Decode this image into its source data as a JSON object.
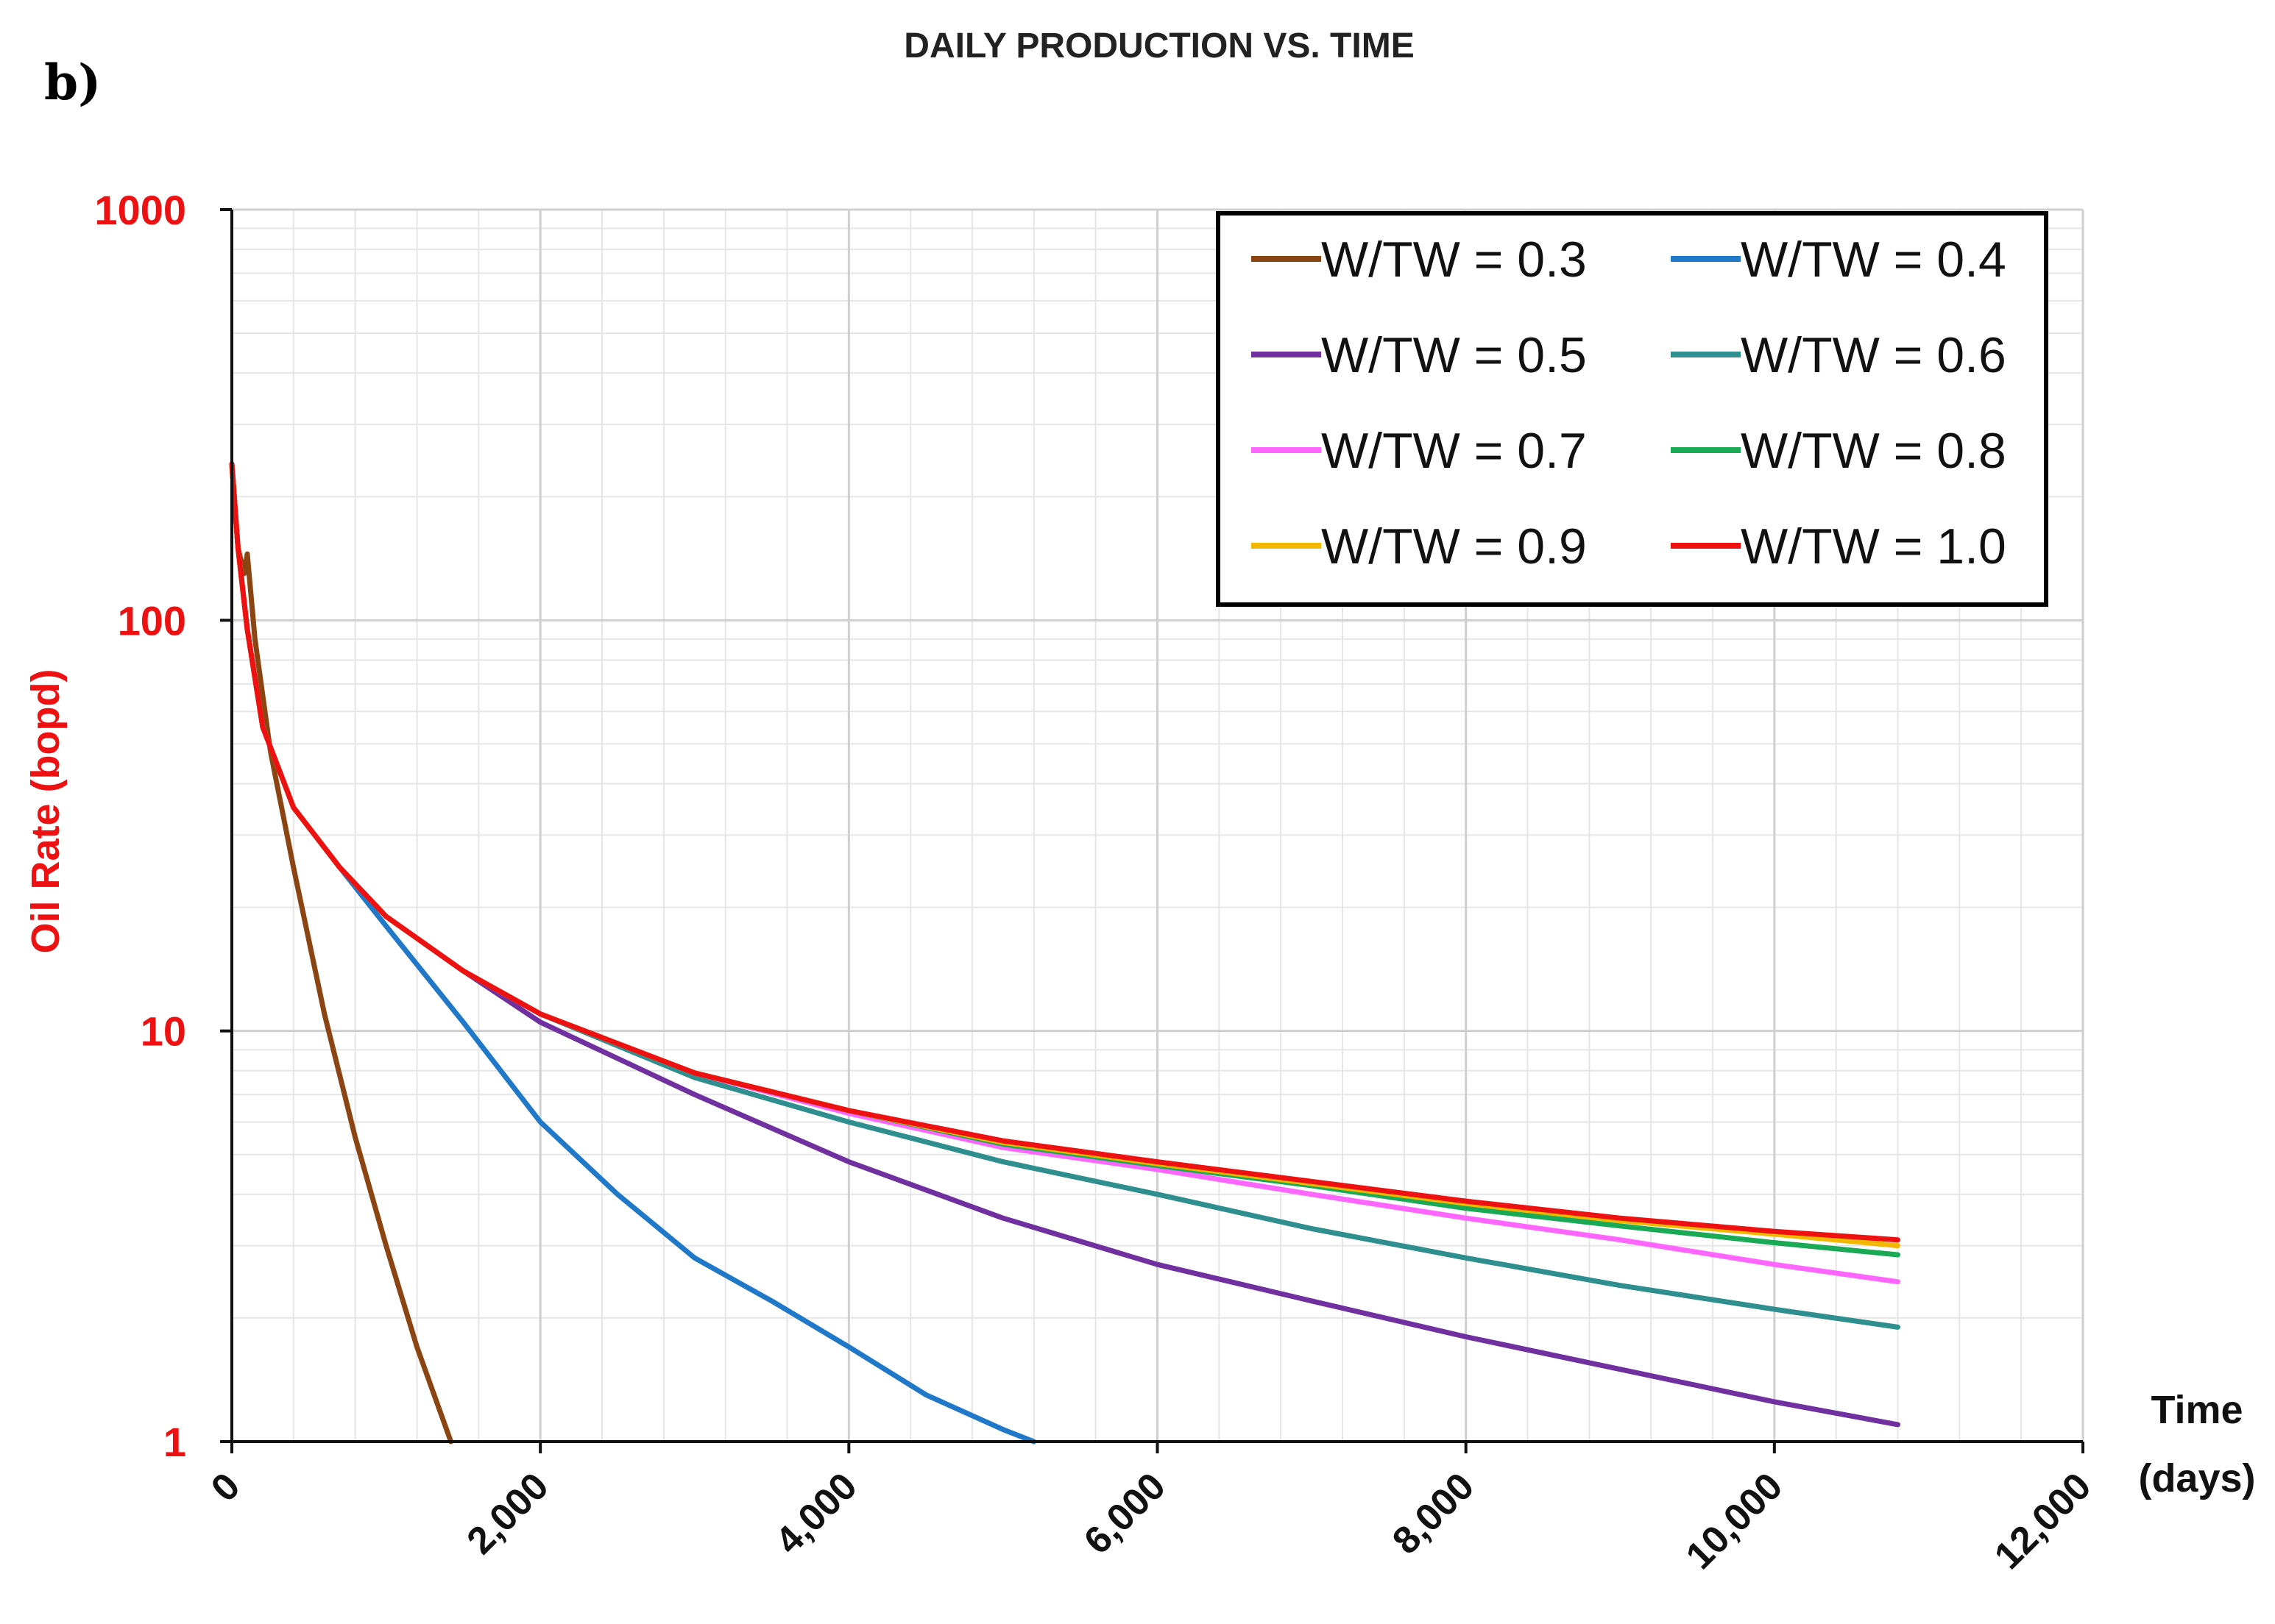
{
  "panel_label": "b)",
  "chart_data": {
    "type": "line",
    "title": "DAILY PRODUCTION VS. TIME",
    "xlabel": [
      "Time",
      "(days)"
    ],
    "ylabel": "Oil Rate (bopd)",
    "xlim": [
      0,
      12000
    ],
    "ylim": [
      1,
      1000
    ],
    "yscale": "log",
    "x_ticks": [
      0,
      2000,
      4000,
      6000,
      8000,
      10000,
      12000
    ],
    "x_tick_labels": [
      "0",
      "2,000",
      "4,000",
      "6,000",
      "8,000",
      "10,000",
      "12,000"
    ],
    "y_ticks": [
      1,
      10,
      100,
      1000
    ],
    "y_tick_labels": [
      "1",
      "10",
      "100",
      "1000"
    ],
    "grid": true,
    "legend_position": "top-right",
    "series": [
      {
        "name": "W/TW = 0.3",
        "color": "#8B4513",
        "x": [
          0,
          40,
          80,
          100,
          150,
          250,
          400,
          600,
          800,
          1000,
          1200,
          1400,
          1420
        ],
        "y": [
          240,
          150,
          130,
          145,
          90,
          48,
          25,
          11,
          5.5,
          3.0,
          1.7,
          1.05,
          1.0
        ]
      },
      {
        "name": "W/TW = 0.4",
        "color": "#1f78c8",
        "x": [
          0,
          40,
          100,
          200,
          400,
          700,
          1000,
          1500,
          2000,
          2500,
          3000,
          3500,
          4000,
          4500,
          5000,
          5200
        ],
        "y": [
          240,
          150,
          95,
          55,
          35,
          25,
          18,
          10.5,
          6.0,
          4.0,
          2.8,
          2.2,
          1.7,
          1.3,
          1.07,
          1.0
        ]
      },
      {
        "name": "W/TW = 0.5",
        "color": "#7030a0",
        "x": [
          0,
          40,
          100,
          200,
          400,
          700,
          1000,
          1500,
          2000,
          3000,
          4000,
          5000,
          6000,
          7000,
          8000,
          9000,
          10000,
          10800
        ],
        "y": [
          240,
          150,
          95,
          55,
          35,
          25,
          19,
          14,
          10.5,
          7.0,
          4.8,
          3.5,
          2.7,
          2.2,
          1.8,
          1.5,
          1.25,
          1.1
        ]
      },
      {
        "name": "W/TW = 0.6",
        "color": "#2f8f8f",
        "x": [
          0,
          40,
          100,
          200,
          400,
          700,
          1000,
          1500,
          2000,
          3000,
          4000,
          5000,
          6000,
          7000,
          8000,
          9000,
          10000,
          10800
        ],
        "y": [
          240,
          150,
          95,
          55,
          35,
          25,
          19,
          14,
          11,
          7.7,
          6.0,
          4.8,
          4.0,
          3.3,
          2.8,
          2.4,
          2.1,
          1.9
        ]
      },
      {
        "name": "W/TW = 0.7",
        "color": "#ff66ff",
        "x": [
          0,
          40,
          100,
          200,
          400,
          700,
          1000,
          1500,
          2000,
          3000,
          4000,
          5000,
          6000,
          7000,
          8000,
          9000,
          10000,
          10800
        ],
        "y": [
          240,
          150,
          95,
          55,
          35,
          25,
          19,
          14,
          11,
          7.9,
          6.3,
          5.2,
          4.6,
          4.0,
          3.5,
          3.1,
          2.7,
          2.45
        ]
      },
      {
        "name": "W/TW = 0.8",
        "color": "#1aaa55",
        "x": [
          0,
          40,
          100,
          200,
          400,
          700,
          1000,
          1500,
          2000,
          3000,
          4000,
          5000,
          6000,
          7000,
          8000,
          9000,
          10000,
          10800
        ],
        "y": [
          240,
          150,
          95,
          55,
          35,
          25,
          19,
          14,
          11,
          7.9,
          6.4,
          5.3,
          4.7,
          4.2,
          3.7,
          3.35,
          3.05,
          2.85
        ]
      },
      {
        "name": "W/TW = 0.9",
        "color": "#f2b800",
        "x": [
          0,
          40,
          100,
          200,
          400,
          700,
          1000,
          1500,
          2000,
          3000,
          4000,
          5000,
          6000,
          7000,
          8000,
          9000,
          10000,
          10800
        ],
        "y": [
          240,
          150,
          95,
          55,
          35,
          25,
          19,
          14,
          11,
          7.9,
          6.4,
          5.35,
          4.75,
          4.25,
          3.8,
          3.45,
          3.2,
          3.0
        ]
      },
      {
        "name": "W/TW = 1.0",
        "color": "#ee1111",
        "x": [
          0,
          40,
          100,
          200,
          400,
          700,
          1000,
          1500,
          2000,
          3000,
          4000,
          5000,
          6000,
          7000,
          8000,
          9000,
          10000,
          10800
        ],
        "y": [
          240,
          150,
          95,
          55,
          35,
          25,
          19,
          14,
          11,
          7.9,
          6.4,
          5.4,
          4.8,
          4.3,
          3.85,
          3.5,
          3.25,
          3.1
        ]
      }
    ]
  }
}
